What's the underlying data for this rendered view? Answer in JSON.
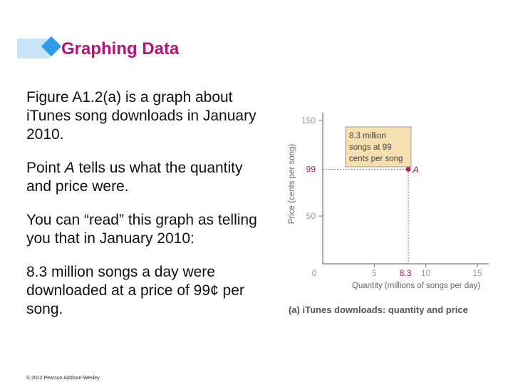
{
  "slide": {
    "title": "Graphing Data",
    "paragraphs": [
      [
        "Figure A1.2(a) is a graph about iTunes song downloads in January 2010."
      ],
      [
        "Point ",
        {
          "italic": "A"
        },
        " tells us what the quantity and price were."
      ],
      [
        "You can “read” this graph as telling you that in January 2010:"
      ],
      [
        "8.3 million songs a day were downloaded at a price of 99¢ per song."
      ]
    ],
    "copyright": "© 2012 Pearson Addison-Wesley",
    "colors": {
      "title": "#b5127a",
      "accent_bar": "#c8e4f8",
      "accent_diamond": "#2e9ae8",
      "point": "#c2185b",
      "callout_fill": "#f6dfb0",
      "axis_text": "#9a9a9a"
    }
  },
  "chart_data": {
    "type": "scatter",
    "caption": "(a) iTunes downloads: quantity and price",
    "xlabel": "Quantity (millions of songs per day)",
    "ylabel": "Price (cents per song)",
    "xlim": [
      0,
      15
    ],
    "ylim": [
      0,
      150
    ],
    "xticks": [
      0,
      5,
      10,
      15
    ],
    "yticks": [
      50,
      150
    ],
    "grid": false,
    "points": [
      {
        "label": "A",
        "x": 8.3,
        "y": 99,
        "x_label": "8.3",
        "y_label": "99"
      }
    ],
    "annotation": {
      "lines": [
        "8.3 million",
        "songs at 99",
        "cents per song"
      ]
    }
  }
}
